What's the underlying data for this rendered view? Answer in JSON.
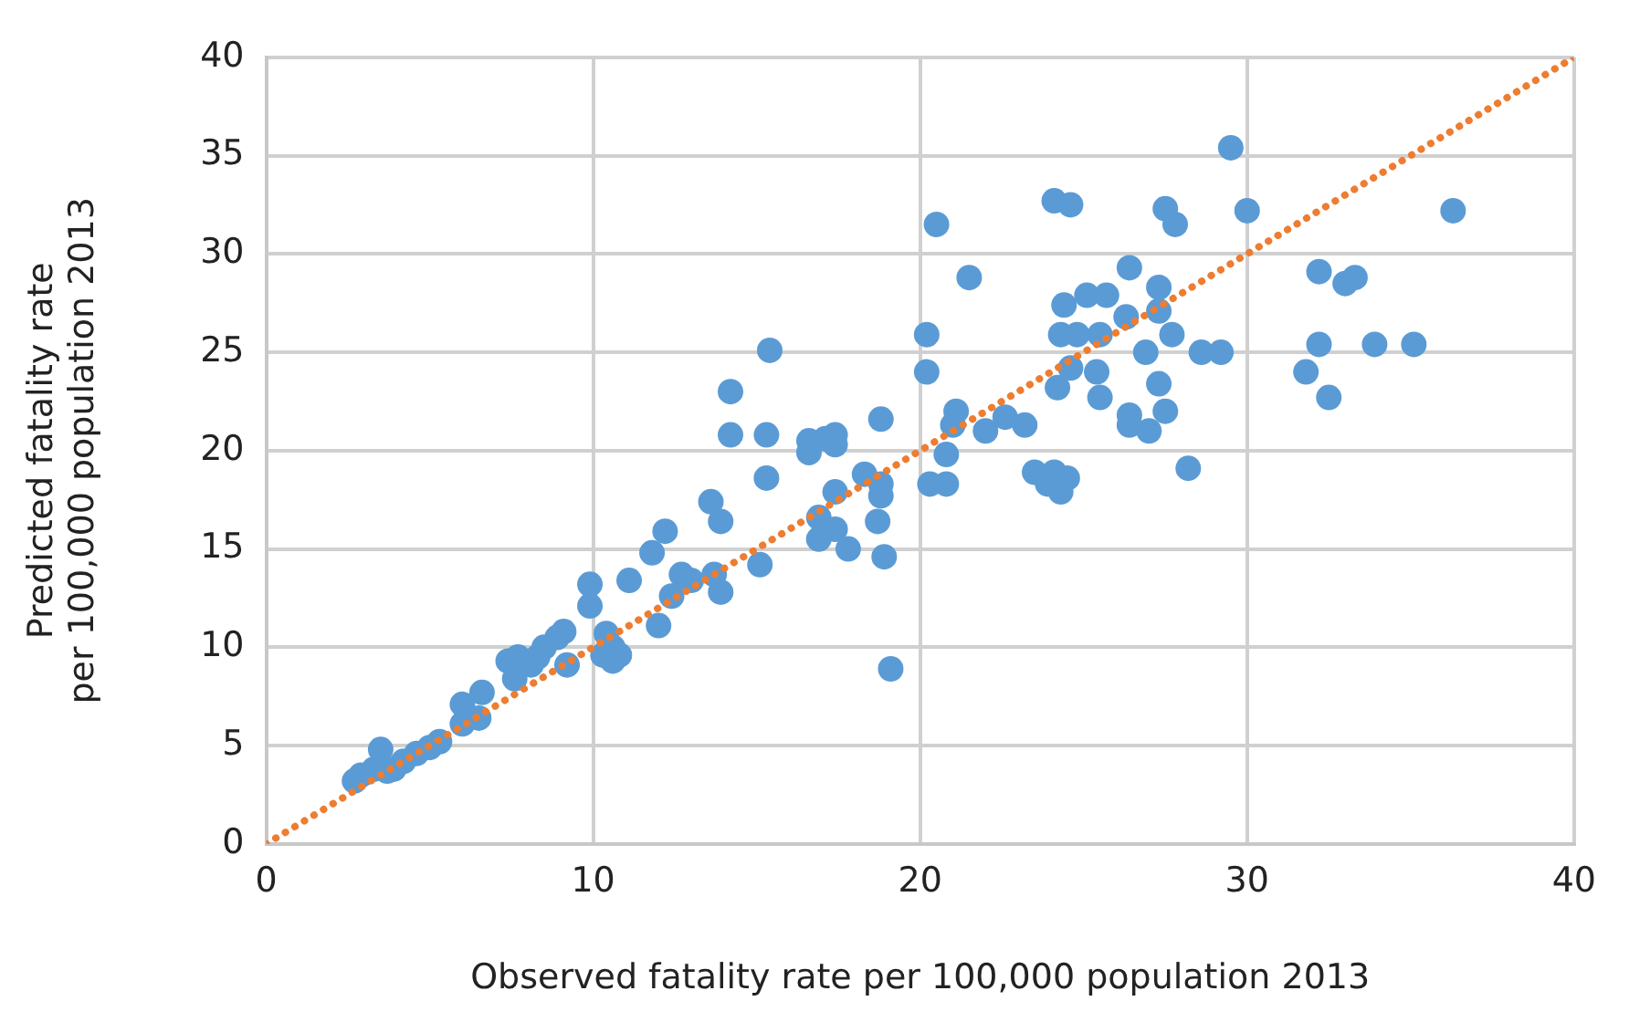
{
  "chart_data": {
    "type": "scatter",
    "xlabel": "Observed fatality rate per 100,000 population 2013",
    "ylabel": "Predicted fatality rate\nper 100,000 population 2013",
    "xlim": [
      0,
      40
    ],
    "ylim": [
      0,
      40
    ],
    "xticks": [
      0,
      10,
      20,
      30,
      40
    ],
    "yticks": [
      0,
      5,
      10,
      15,
      20,
      25,
      30,
      35,
      40
    ],
    "grid": true,
    "legend": false,
    "marker": "circle",
    "series": [
      {
        "color": "#5b9bd5",
        "x": [
          2.7,
          2.9,
          3.3,
          3.5,
          3.7,
          3.9,
          4.2,
          4.6,
          5.0,
          5.3,
          6.0,
          6.0,
          6.6,
          6.5,
          7.4,
          7.7,
          7.6,
          8.1,
          8.3,
          8.5,
          8.9,
          9.1,
          9.2,
          9.9,
          9.9,
          10.3,
          10.4,
          10.6,
          10.6,
          10.8,
          11.1,
          11.8,
          12.0,
          12.2,
          12.4,
          12.7,
          13.0,
          13.6,
          13.7,
          13.9,
          13.9,
          14.2,
          14.2,
          15.1,
          15.3,
          15.4,
          15.3,
          16.6,
          16.6,
          16.9,
          16.9,
          17.1,
          17.4,
          17.4,
          17.4,
          17.8,
          17.4,
          18.3,
          18.8,
          18.8,
          18.9,
          19.1,
          18.7,
          18.8,
          29.5,
          24.1,
          24.6,
          27.5,
          27.8,
          30.0,
          20.5,
          26.4,
          21.5,
          27.3,
          25.1,
          25.7,
          24.4,
          26.3,
          27.3,
          20.2,
          24.3,
          24.8,
          25.5,
          27.7,
          26.9,
          28.6,
          29.2,
          24.6,
          25.4,
          20.2,
          24.2,
          27.3,
          25.5,
          21.1,
          21.0,
          22.6,
          27.5,
          22.0,
          23.2,
          26.4,
          26.4,
          27.0,
          20.8,
          20.3,
          20.8,
          23.5,
          24.1,
          24.5,
          24.3,
          23.9,
          28.2,
          36.3,
          32.2,
          33.0,
          33.3,
          32.2,
          33.9,
          35.1,
          31.8,
          32.5
        ],
        "values": [
          3.2,
          3.5,
          3.8,
          4.8,
          3.7,
          3.8,
          4.2,
          4.6,
          4.9,
          5.2,
          6.1,
          7.1,
          7.7,
          6.4,
          9.3,
          9.5,
          8.4,
          9.1,
          9.5,
          10.0,
          10.5,
          10.8,
          9.1,
          13.2,
          12.1,
          9.6,
          10.7,
          10.0,
          9.3,
          9.6,
          13.4,
          14.8,
          11.1,
          15.9,
          12.6,
          13.7,
          13.4,
          17.4,
          13.7,
          16.4,
          12.8,
          23.0,
          20.8,
          14.2,
          18.6,
          25.1,
          20.8,
          20.5,
          19.9,
          16.6,
          15.5,
          20.6,
          20.8,
          20.3,
          17.9,
          15.0,
          16.0,
          18.8,
          17.7,
          21.6,
          14.6,
          8.9,
          16.4,
          18.3,
          35.4,
          32.7,
          32.5,
          32.3,
          31.5,
          32.2,
          31.5,
          29.3,
          28.8,
          28.3,
          27.9,
          27.9,
          27.4,
          26.8,
          27.1,
          25.9,
          25.9,
          25.9,
          25.9,
          25.9,
          25.0,
          25.0,
          25.0,
          24.2,
          24.0,
          24.0,
          23.2,
          23.4,
          22.7,
          22.0,
          21.3,
          21.7,
          22.0,
          21.0,
          21.3,
          21.8,
          21.3,
          21.0,
          19.8,
          18.3,
          18.3,
          18.9,
          18.9,
          18.6,
          17.9,
          18.3,
          19.1,
          32.2,
          29.1,
          28.5,
          28.8,
          25.4,
          25.4,
          25.4,
          24.0,
          22.7
        ]
      },
      {
        "type": "line",
        "color": "#ed7d31",
        "line_style": "dotted",
        "marker": "none",
        "x": [
          0,
          40
        ],
        "values": [
          0,
          40
        ]
      }
    ]
  }
}
